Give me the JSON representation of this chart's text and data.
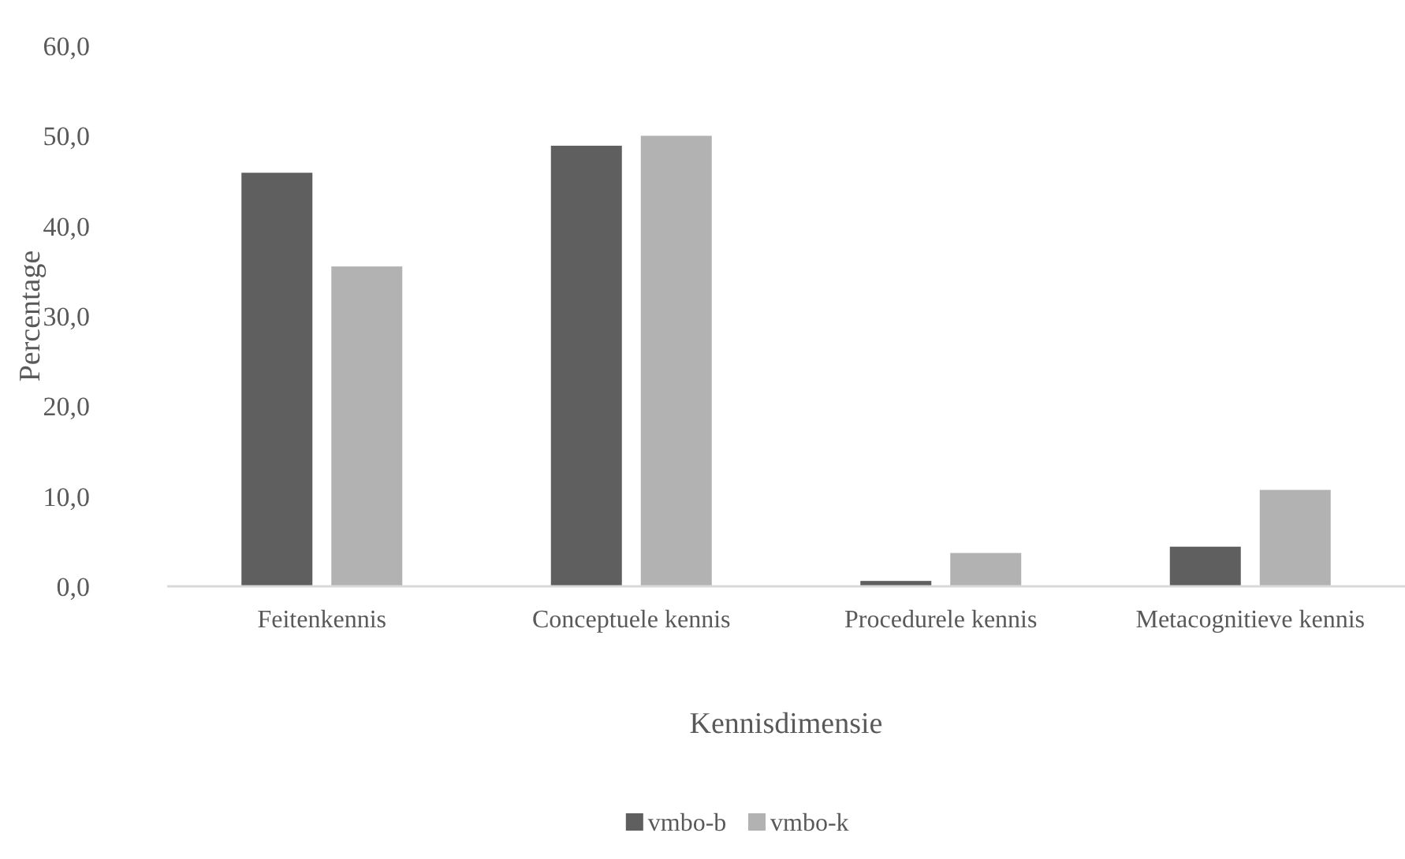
{
  "chart_data": {
    "type": "bar",
    "xlabel": "Kennisdimensie",
    "ylabel": "Percentage",
    "categories": [
      "Feitenkennis",
      "Conceptuele kennis",
      "Procedurele kennis",
      "Metacognitieve kennis"
    ],
    "series": [
      {
        "name": "vmbo-b",
        "color": "#5f5f5f",
        "values": [
          45.9,
          48.9,
          0.6,
          4.4
        ]
      },
      {
        "name": "vmbo-k",
        "color": "#b2b2b2",
        "values": [
          35.5,
          50.0,
          3.7,
          10.7
        ]
      }
    ],
    "ylim": [
      0,
      60
    ],
    "yticks": [
      {
        "value": 0,
        "label": "0,0"
      },
      {
        "value": 10,
        "label": "10,0"
      },
      {
        "value": 20,
        "label": "20,0"
      },
      {
        "value": 30,
        "label": "30,0"
      },
      {
        "value": 40,
        "label": "40,0"
      },
      {
        "value": 50,
        "label": "50,0"
      },
      {
        "value": 60,
        "label": "60,0"
      }
    ],
    "grid": false,
    "legend": "bottom"
  }
}
